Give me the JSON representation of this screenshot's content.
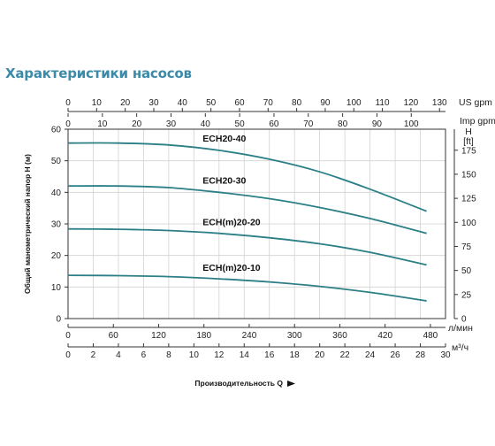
{
  "page": {
    "title": "Характеристики насосов",
    "title_color": "#3a8aa8"
  },
  "chart_data": {
    "type": "line",
    "xlabel": "Производительность Q",
    "ylabel": "Общий манометрический напор H (м)",
    "grid": true,
    "line_color": "#2b7f86",
    "x_units": {
      "flow_m3h": "м³/ч",
      "flow_lmin": "л/мин",
      "us_gpm": "US gpm",
      "imp_gpm": "Imp gpm"
    },
    "y_units": {
      "head_ft_h": "H",
      "head_ft": "[ft]"
    },
    "x_m3h": {
      "range": [
        0,
        30
      ],
      "ticks": [
        0,
        2,
        4,
        6,
        8,
        10,
        12,
        14,
        16,
        18,
        20,
        22,
        24,
        26,
        28,
        30
      ]
    },
    "x_lmin": {
      "ticks": [
        0,
        60,
        120,
        180,
        240,
        300,
        360,
        420,
        480
      ]
    },
    "x_us_gpm": {
      "ticks": [
        0,
        10,
        20,
        30,
        40,
        50,
        60,
        70,
        80,
        90,
        100,
        110,
        120,
        130
      ]
    },
    "x_imp_gpm": {
      "ticks": [
        0,
        10,
        20,
        30,
        40,
        50,
        60,
        70,
        80,
        90,
        100
      ]
    },
    "y_m": {
      "range": [
        0,
        60
      ],
      "ticks": [
        0,
        10,
        20,
        30,
        40,
        50,
        60
      ]
    },
    "y_ft": {
      "ticks": [
        0,
        25,
        50,
        75,
        100,
        125,
        150,
        175
      ]
    },
    "series": [
      {
        "name": "ECH20-40",
        "x": [
          0,
          4,
          8,
          12,
          16,
          20,
          24,
          28.5
        ],
        "y": [
          55.6,
          55.6,
          55.0,
          53.3,
          50.5,
          46.5,
          41.0,
          34.0
        ]
      },
      {
        "name": "ECH20-30",
        "x": [
          0,
          4,
          8,
          12,
          16,
          20,
          24,
          28.5
        ],
        "y": [
          42.0,
          42.0,
          41.5,
          40.0,
          38.0,
          35.2,
          31.7,
          27.0
        ]
      },
      {
        "name": "ECH(m)20-20",
        "x": [
          0,
          4,
          8,
          12,
          16,
          20,
          24,
          28.5
        ],
        "y": [
          28.4,
          28.3,
          27.9,
          27.0,
          25.6,
          23.7,
          21.0,
          17.0
        ]
      },
      {
        "name": "ECH(m)20-10",
        "x": [
          0,
          4,
          8,
          12,
          16,
          20,
          24,
          28.5
        ],
        "y": [
          13.7,
          13.6,
          13.3,
          12.6,
          11.6,
          10.2,
          8.3,
          5.6
        ]
      }
    ]
  }
}
